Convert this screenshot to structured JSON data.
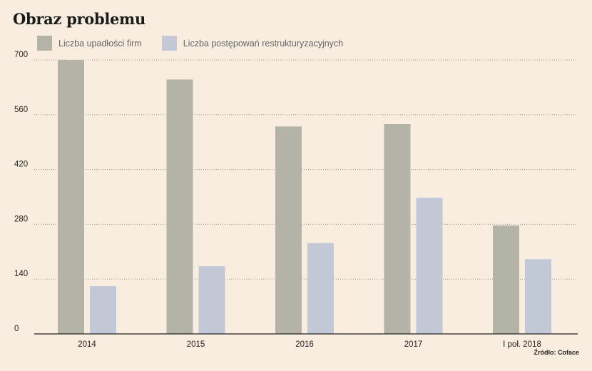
{
  "title": "Obraz problemu",
  "source": "Źródło: Coface",
  "legend": [
    {
      "label": "Liczba upadłości firm",
      "color": "#b4b3a7"
    },
    {
      "label": "Liczba postępowań restrukturyzacyjnych",
      "color": "#c3c8d7"
    }
  ],
  "chart_data": {
    "type": "bar",
    "categories": [
      "2014",
      "2015",
      "2016",
      "2017",
      "I poł. 2018"
    ],
    "series": [
      {
        "name": "Liczba upadłości firm",
        "values": [
          700,
          650,
          530,
          536,
          277
        ],
        "color": "#b4b3a7"
      },
      {
        "name": "Liczba postępowań restrukturyzacyjnych",
        "values": [
          122,
          173,
          232,
          348,
          191
        ],
        "color": "#c3c8d7"
      }
    ],
    "yticks": [
      0,
      140,
      280,
      420,
      560,
      700
    ],
    "ylim": [
      0,
      700
    ],
    "grid": true,
    "legend_position": "top-left"
  }
}
